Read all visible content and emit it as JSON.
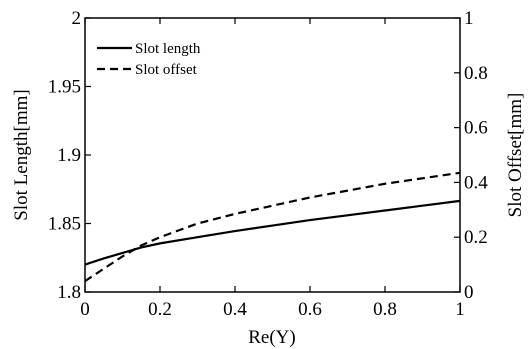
{
  "chart_data": {
    "type": "line",
    "xlabel": "Re(Y)",
    "ylabel_left": "Slot Length[mm]",
    "ylabel_right": "Slot Offset[mm]",
    "xlim": [
      0,
      1
    ],
    "ylim_left": [
      1.8,
      2.0
    ],
    "ylim_right": [
      0,
      1
    ],
    "x_ticks": [
      "0",
      "0.2",
      "0.4",
      "0.6",
      "0.8",
      "1"
    ],
    "y_left_ticks": [
      "1.8",
      "1.85",
      "1.9",
      "1.95",
      "2"
    ],
    "y_right_ticks": [
      "0",
      "0.2",
      "0.4",
      "0.6",
      "0.8",
      "1"
    ],
    "grid": false,
    "legend_position": "top-left",
    "x": [
      0,
      0.05,
      0.1,
      0.15,
      0.2,
      0.3,
      0.4,
      0.5,
      0.6,
      0.7,
      0.8,
      0.9,
      1.0
    ],
    "series": [
      {
        "name": "Slot length",
        "axis": "left",
        "style": "solid",
        "color": "#000000",
        "values": [
          1.82,
          1.8245,
          1.8285,
          1.8325,
          1.8355,
          1.84,
          1.8445,
          1.8485,
          1.8525,
          1.856,
          1.8595,
          1.863,
          1.8665
        ]
      },
      {
        "name": "Slot offset",
        "axis": "right",
        "style": "dashed",
        "color": "#000000",
        "values": [
          0.04,
          0.085,
          0.13,
          0.17,
          0.2,
          0.25,
          0.285,
          0.315,
          0.345,
          0.37,
          0.395,
          0.415,
          0.435
        ]
      }
    ]
  }
}
